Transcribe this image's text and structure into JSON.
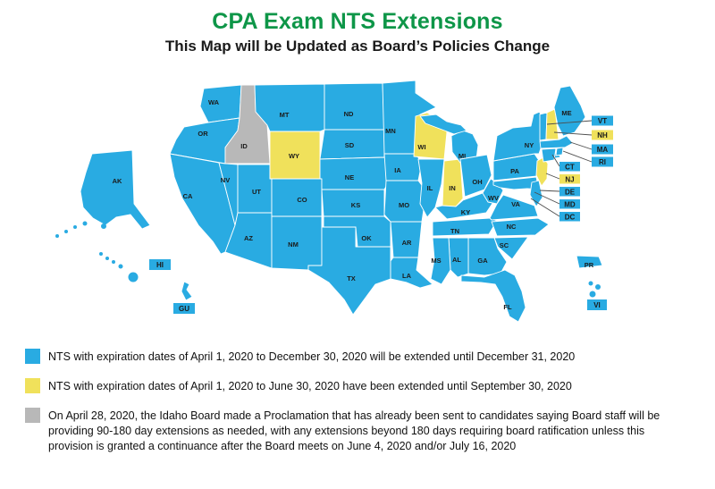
{
  "title": "CPA Exam NTS Extensions",
  "subtitle": "This Map will be Updated as Board’s Policies Change",
  "colors": {
    "blue": "#29ABE2",
    "yellow": "#F0E15B",
    "gray": "#B8B8B8",
    "title_green": "#0E9648",
    "line": "#4d4d4d",
    "label_dark": "#1a1a1a"
  },
  "map": {
    "states": [
      {
        "id": "WA",
        "label": "WA",
        "status": "blue"
      },
      {
        "id": "OR",
        "label": "OR",
        "status": "blue"
      },
      {
        "id": "CA",
        "label": "CA",
        "status": "blue"
      },
      {
        "id": "NV",
        "label": "NV",
        "status": "blue"
      },
      {
        "id": "ID",
        "label": "ID",
        "status": "gray"
      },
      {
        "id": "UT",
        "label": "UT",
        "status": "blue"
      },
      {
        "id": "AZ",
        "label": "AZ",
        "status": "blue"
      },
      {
        "id": "MT",
        "label": "MT",
        "status": "blue"
      },
      {
        "id": "WY",
        "label": "WY",
        "status": "yellow"
      },
      {
        "id": "CO",
        "label": "CO",
        "status": "blue"
      },
      {
        "id": "NM",
        "label": "NM",
        "status": "blue"
      },
      {
        "id": "ND",
        "label": "ND",
        "status": "blue"
      },
      {
        "id": "SD",
        "label": "SD",
        "status": "blue"
      },
      {
        "id": "NE",
        "label": "NE",
        "status": "blue"
      },
      {
        "id": "KS",
        "label": "KS",
        "status": "blue"
      },
      {
        "id": "OK",
        "label": "OK",
        "status": "blue"
      },
      {
        "id": "TX",
        "label": "TX",
        "status": "blue"
      },
      {
        "id": "MN",
        "label": "MN",
        "status": "blue"
      },
      {
        "id": "IA",
        "label": "IA",
        "status": "blue"
      },
      {
        "id": "MO",
        "label": "MO",
        "status": "blue"
      },
      {
        "id": "AR",
        "label": "AR",
        "status": "blue"
      },
      {
        "id": "LA",
        "label": "LA",
        "status": "blue"
      },
      {
        "id": "WI",
        "label": "WI",
        "status": "yellow"
      },
      {
        "id": "IL",
        "label": "IL",
        "status": "blue"
      },
      {
        "id": "IN",
        "label": "IN",
        "status": "yellow"
      },
      {
        "id": "MI",
        "label": "MI",
        "status": "blue"
      },
      {
        "id": "OH",
        "label": "OH",
        "status": "blue"
      },
      {
        "id": "KY",
        "label": "KY",
        "status": "blue"
      },
      {
        "id": "TN",
        "label": "TN",
        "status": "blue"
      },
      {
        "id": "WV",
        "label": "WV",
        "status": "blue"
      },
      {
        "id": "VA",
        "label": "VA",
        "status": "blue"
      },
      {
        "id": "NC",
        "label": "NC",
        "status": "blue"
      },
      {
        "id": "SC",
        "label": "SC",
        "status": "blue"
      },
      {
        "id": "GA",
        "label": "GA",
        "status": "blue"
      },
      {
        "id": "AL",
        "label": "AL",
        "status": "blue"
      },
      {
        "id": "MS",
        "label": "MS",
        "status": "blue"
      },
      {
        "id": "FL",
        "label": "FL",
        "status": "blue"
      },
      {
        "id": "PA",
        "label": "PA",
        "status": "blue"
      },
      {
        "id": "NY",
        "label": "NY",
        "status": "blue"
      },
      {
        "id": "NJ",
        "label": "",
        "status": "yellow"
      },
      {
        "id": "VT",
        "label": "",
        "status": "blue"
      },
      {
        "id": "NH",
        "label": "",
        "status": "yellow"
      },
      {
        "id": "ME",
        "label": "ME",
        "status": "blue"
      },
      {
        "id": "MA",
        "label": "",
        "status": "blue"
      },
      {
        "id": "CT",
        "label": "",
        "status": "blue"
      },
      {
        "id": "RI",
        "label": "",
        "status": "blue"
      },
      {
        "id": "MD",
        "label": "",
        "status": "blue"
      },
      {
        "id": "DE",
        "label": "",
        "status": "blue"
      },
      {
        "id": "AK",
        "label": "AK",
        "status": "blue"
      },
      {
        "id": "HI",
        "label": "",
        "status": "blue"
      },
      {
        "id": "GU",
        "label": "",
        "status": "blue"
      },
      {
        "id": "PR",
        "label": "PR",
        "status": "blue"
      },
      {
        "id": "VI",
        "label": "",
        "status": "blue"
      }
    ],
    "callouts": [
      {
        "id": "VT",
        "label": "VT",
        "status": "blue"
      },
      {
        "id": "NH",
        "label": "NH",
        "status": "yellow"
      },
      {
        "id": "MA",
        "label": "MA",
        "status": "blue"
      },
      {
        "id": "RI",
        "label": "RI",
        "status": "blue"
      },
      {
        "id": "CT",
        "label": "CT",
        "status": "blue"
      },
      {
        "id": "NJ",
        "label": "NJ",
        "status": "yellow"
      },
      {
        "id": "DE",
        "label": "DE",
        "status": "blue"
      },
      {
        "id": "MD",
        "label": "MD",
        "status": "blue"
      },
      {
        "id": "DC",
        "label": "DC",
        "status": "blue"
      }
    ],
    "territory_boxes": [
      {
        "id": "HI",
        "label": "HI",
        "status": "blue"
      },
      {
        "id": "GU",
        "label": "GU",
        "status": "blue"
      },
      {
        "id": "VI",
        "label": "VI",
        "status": "blue"
      }
    ]
  },
  "legend": [
    {
      "status": "blue",
      "text": "NTS with expiration dates of April 1, 2020 to December 30, 2020 will be extended until December 31, 2020"
    },
    {
      "status": "yellow",
      "text": "NTS with expiration dates of April 1, 2020 to June 30, 2020 have been extended until September 30, 2020"
    },
    {
      "status": "gray",
      "text": "On April 28, 2020, the Idaho Board made a Proclamation that has already been sent to candidates saying Board staff will be providing 90-180 day extensions as needed, with any extensions beyond 180 days requiring board ratification unless this provision is granted a continuance after the Board meets on June 4, 2020 and/or July 16, 2020"
    }
  ]
}
